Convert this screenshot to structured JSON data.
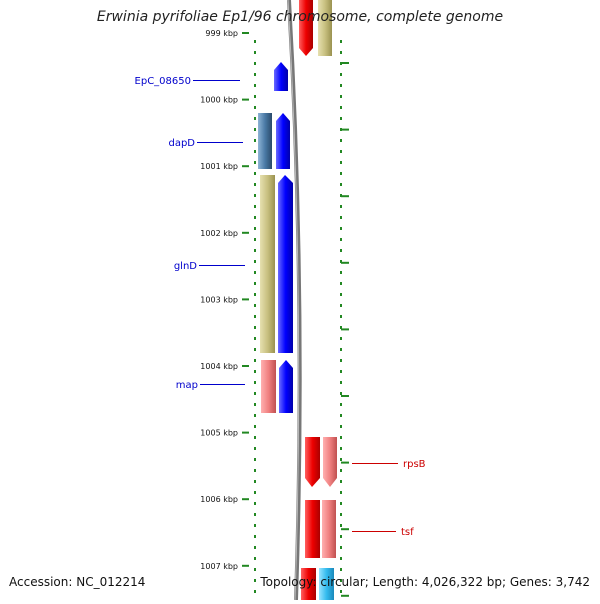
{
  "title": "Erwinia pyrifoliae Ep1/96 chromosome, complete genome",
  "accession_text": "Accession: NC_012214",
  "topology_text": "Topology: circular; Length: 4,026,322 bp; Genes: 3,742",
  "ruler": {
    "ticks": [
      {
        "label": "999 kbp",
        "kbp": 999
      },
      {
        "label": "1000 kbp",
        "kbp": 1000
      },
      {
        "label": "1001 kbp",
        "kbp": 1001
      },
      {
        "label": "1002 kbp",
        "kbp": 1002
      },
      {
        "label": "1003 kbp",
        "kbp": 1003
      },
      {
        "label": "1004 kbp",
        "kbp": 1004
      },
      {
        "label": "1005 kbp",
        "kbp": 1005
      },
      {
        "label": "1006 kbp",
        "kbp": 1006
      },
      {
        "label": "1007 kbp",
        "kbp": 1007
      }
    ]
  },
  "genes": [
    {
      "name": "EpC_08650",
      "color": "#0000cc",
      "side": "left"
    },
    {
      "name": "dapD",
      "color": "#0000cc",
      "side": "left"
    },
    {
      "name": "glnD",
      "color": "#0000cc",
      "side": "left"
    },
    {
      "name": "map",
      "color": "#0000cc",
      "side": "left"
    },
    {
      "name": "rpsB",
      "color": "#cc0000",
      "side": "right"
    },
    {
      "name": "tsf",
      "color": "#cc0000",
      "side": "right"
    }
  ],
  "colors": {
    "forward_strand": "#0000ff",
    "reverse_strand": "#ff0000",
    "feature_olive": "#c8c080",
    "feature_pink": "#f08080",
    "feature_steel": "#4a7aa6",
    "feature_cyan": "#33bbee",
    "tick_green": "#228822",
    "backbone": "#777777"
  }
}
